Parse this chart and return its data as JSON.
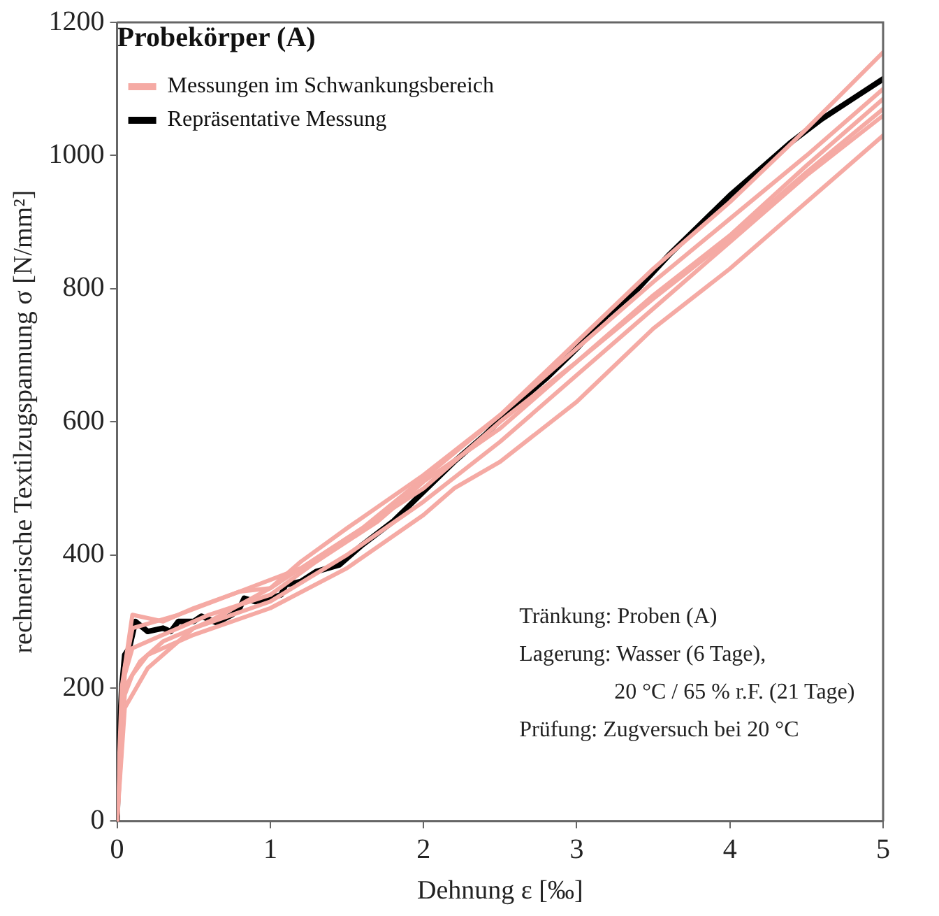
{
  "chart_data": {
    "type": "line",
    "xlabel": "Dehnung ε [‰]",
    "ylabel": "rechnerische Textilzugspannung σ [N/mm²]",
    "legend_title": "Probekörper (A)",
    "legend": "top left",
    "grid": false,
    "xlim": [
      0,
      5
    ],
    "xticks": [
      0,
      1,
      2,
      3,
      4,
      5
    ],
    "ylim": [
      0,
      1200
    ],
    "yticks": [
      0,
      200,
      400,
      600,
      800,
      1000,
      1200
    ],
    "annotations": [
      "Tränkung: Proben (A)",
      "Lagerung: Wasser (6 Tage),",
      "20 °C / 65 % r.F. (21 Tage)",
      "Prüfung: Zugversuch bei 20 °C"
    ],
    "series": [
      {
        "name": "Messungen im Schwankungsbereich",
        "color": "#f5aaa4",
        "x": [
          0,
          0.03,
          0.1,
          0.3,
          0.5,
          0.8,
          1.0,
          1.2,
          1.5,
          2.0,
          2.5,
          3.0,
          3.5,
          4.0,
          4.5,
          5.0
        ],
        "values": [
          0,
          200,
          310,
          300,
          320,
          345,
          350,
          390,
          440,
          520,
          610,
          720,
          830,
          930,
          1040,
          1155
        ]
      },
      {
        "color": "#f5aaa4",
        "x": [
          0,
          0.05,
          0.1,
          0.3,
          0.6,
          1.0,
          1.3,
          1.7,
          2.0,
          2.5,
          3.0,
          3.5,
          4.0,
          4.5,
          5.0
        ],
        "values": [
          0,
          220,
          260,
          280,
          310,
          340,
          390,
          450,
          510,
          590,
          690,
          790,
          880,
          985,
          1085
        ]
      },
      {
        "color": "#f5aaa4",
        "x": [
          0,
          0.05,
          0.15,
          0.3,
          0.6,
          1.0,
          1.4,
          1.8,
          2.0,
          2.5,
          3.0,
          3.5,
          4.0,
          4.5,
          5.0
        ],
        "values": [
          0,
          200,
          240,
          270,
          300,
          350,
          410,
          470,
          500,
          600,
          690,
          785,
          875,
          975,
          1070
        ]
      },
      {
        "color": "#f5aaa4",
        "x": [
          0,
          0.05,
          0.1,
          0.2,
          0.5,
          1.0,
          1.5,
          2.0,
          2.2,
          2.5,
          3.0,
          3.5,
          4.0,
          4.5,
          5.0
        ],
        "values": [
          0,
          190,
          220,
          250,
          280,
          320,
          380,
          460,
          500,
          540,
          630,
          740,
          830,
          930,
          1030
        ]
      },
      {
        "color": "#f5aaa4",
        "x": [
          0,
          0.05,
          0.1,
          0.4,
          0.8,
          1.2,
          1.6,
          2.0,
          2.5,
          3.0,
          3.5,
          4.0,
          4.5,
          5.0
        ],
        "values": [
          0,
          230,
          290,
          310,
          345,
          380,
          440,
          515,
          610,
          710,
          810,
          905,
          1000,
          1100
        ]
      },
      {
        "color": "#f5aaa4",
        "x": [
          0,
          0.05,
          0.2,
          0.5,
          1.0,
          1.5,
          2.0,
          2.5,
          3.0,
          3.5,
          4.0,
          4.5,
          5.0
        ],
        "values": [
          0,
          170,
          230,
          290,
          330,
          400,
          480,
          570,
          670,
          770,
          870,
          970,
          1060
        ]
      },
      {
        "name": "Repräsentative Messung",
        "color": "#000000",
        "x": [
          0,
          0.01,
          0.03,
          0.05,
          0.08,
          0.12,
          0.2,
          0.3,
          0.35,
          0.4,
          0.5,
          0.55,
          0.65,
          0.75,
          0.8,
          0.83,
          0.9,
          1.0,
          1.07,
          1.1,
          1.2,
          1.3,
          1.45,
          1.6,
          1.8,
          2.0,
          2.2,
          2.4,
          2.6,
          2.8,
          3.0,
          3.2,
          3.4,
          3.6,
          3.8,
          4.0,
          4.2,
          4.4,
          4.6,
          4.8,
          5.0
        ],
        "values": [
          0,
          100,
          200,
          250,
          260,
          300,
          285,
          290,
          285,
          300,
          300,
          308,
          298,
          310,
          320,
          335,
          330,
          335,
          340,
          355,
          360,
          375,
          385,
          415,
          450,
          495,
          540,
          580,
          625,
          665,
          710,
          760,
          800,
          850,
          895,
          940,
          980,
          1020,
          1055,
          1085,
          1115
        ]
      }
    ]
  }
}
